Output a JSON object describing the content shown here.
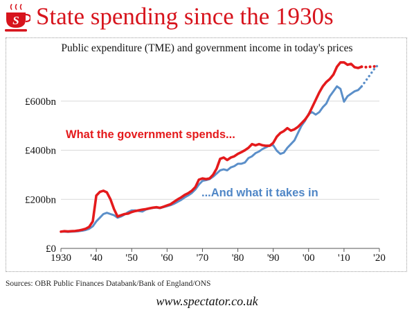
{
  "header": {
    "title": "State spending since the 1930s",
    "logo": "spectator-teacup-logo"
  },
  "colors": {
    "title": "#d7141d",
    "spending": "#e41a1c",
    "income": "#5b8fc9",
    "annotation_spending": "#e41a1c",
    "annotation_income": "#4f86c6"
  },
  "footer": {
    "sources": "Sources: OBR Public Finances Databank/Bank of England/ONS",
    "website": "www.spectator.co.uk"
  },
  "chart_data": {
    "type": "line",
    "title": "Public expenditure (TME) and government income in today's prices",
    "xlabel": "",
    "ylabel": "",
    "xlim": [
      1930,
      2020
    ],
    "ylim": [
      0,
      800
    ],
    "y_ticks": [
      0,
      200,
      400,
      600
    ],
    "y_tick_labels": [
      "£0",
      "£200bn",
      "£400bn",
      "£600bn"
    ],
    "x_ticks": [
      1930,
      1940,
      1950,
      1960,
      1970,
      1980,
      1990,
      2000,
      2010,
      2020
    ],
    "x_tick_labels": [
      "1930",
      "'40",
      "'50",
      "'60",
      "'70",
      "'80",
      "'90",
      "'00",
      "'10",
      "'20"
    ],
    "grid": "horizontal",
    "series": [
      {
        "name": "What the government spends...",
        "color": "#e41a1c",
        "x": [
          1930,
          1931,
          1932,
          1933,
          1934,
          1935,
          1936,
          1937,
          1938,
          1939,
          1940,
          1941,
          1942,
          1943,
          1944,
          1945,
          1946,
          1947,
          1948,
          1949,
          1950,
          1951,
          1952,
          1953,
          1954,
          1955,
          1956,
          1957,
          1958,
          1959,
          1960,
          1961,
          1962,
          1963,
          1964,
          1965,
          1966,
          1967,
          1968,
          1969,
          1970,
          1971,
          1972,
          1973,
          1974,
          1975,
          1976,
          1977,
          1978,
          1979,
          1980,
          1981,
          1982,
          1983,
          1984,
          1985,
          1986,
          1987,
          1988,
          1989,
          1990,
          1991,
          1992,
          1993,
          1994,
          1995,
          1996,
          1997,
          1998,
          1999,
          2000,
          2001,
          2002,
          2003,
          2004,
          2005,
          2006,
          2007,
          2008,
          2009,
          2010,
          2011,
          2012,
          2013,
          2014,
          2015
        ],
        "values": [
          68,
          70,
          69,
          70,
          71,
          73,
          76,
          80,
          88,
          110,
          215,
          230,
          235,
          228,
          200,
          160,
          130,
          135,
          140,
          142,
          148,
          152,
          155,
          158,
          160,
          163,
          166,
          168,
          165,
          170,
          175,
          180,
          190,
          200,
          208,
          218,
          225,
          235,
          250,
          280,
          285,
          282,
          285,
          300,
          325,
          365,
          370,
          360,
          370,
          375,
          385,
          392,
          400,
          410,
          425,
          420,
          425,
          420,
          418,
          418,
          430,
          455,
          470,
          478,
          490,
          480,
          485,
          495,
          510,
          525,
          545,
          575,
          605,
          635,
          660,
          678,
          690,
          708,
          740,
          758,
          758,
          748,
          752,
          738,
          735,
          740
        ]
      },
      {
        "name": "...And what it takes in",
        "color": "#5b8fc9",
        "x": [
          1930,
          1931,
          1932,
          1933,
          1934,
          1935,
          1936,
          1937,
          1938,
          1939,
          1940,
          1941,
          1942,
          1943,
          1944,
          1945,
          1946,
          1947,
          1948,
          1949,
          1950,
          1951,
          1952,
          1953,
          1954,
          1955,
          1956,
          1957,
          1958,
          1959,
          1960,
          1961,
          1962,
          1963,
          1964,
          1965,
          1966,
          1967,
          1968,
          1969,
          1970,
          1971,
          1972,
          1973,
          1974,
          1975,
          1976,
          1977,
          1978,
          1979,
          1980,
          1981,
          1982,
          1983,
          1984,
          1985,
          1986,
          1987,
          1988,
          1989,
          1990,
          1991,
          1992,
          1993,
          1994,
          1995,
          1996,
          1997,
          1998,
          1999,
          2000,
          2001,
          2002,
          2003,
          2004,
          2005,
          2006,
          2007,
          2008,
          2009,
          2010,
          2011,
          2012,
          2013,
          2014,
          2015
        ],
        "values": [
          68,
          68,
          67,
          68,
          69,
          70,
          72,
          75,
          80,
          90,
          110,
          125,
          140,
          145,
          140,
          135,
          125,
          130,
          138,
          148,
          155,
          155,
          152,
          150,
          158,
          162,
          165,
          166,
          164,
          168,
          172,
          176,
          182,
          190,
          198,
          208,
          216,
          226,
          240,
          260,
          275,
          278,
          282,
          292,
          305,
          318,
          322,
          318,
          330,
          335,
          345,
          345,
          350,
          368,
          375,
          388,
          395,
          405,
          412,
          420,
          420,
          398,
          385,
          390,
          410,
          425,
          440,
          470,
          500,
          520,
          548,
          555,
          545,
          555,
          575,
          590,
          620,
          640,
          660,
          650,
          598,
          620,
          630,
          640,
          645,
          660
        ]
      },
      {
        "name": "Spending forecast",
        "color": "#e41a1c",
        "dotted": true,
        "x": [
          2015,
          2016,
          2017,
          2018,
          2019
        ],
        "values": [
          740,
          738,
          740,
          740,
          742
        ]
      },
      {
        "name": "Income forecast",
        "color": "#5b8fc9",
        "dotted": true,
        "x": [
          2015,
          2016,
          2017,
          2018,
          2019,
          2020
        ],
        "values": [
          660,
          680,
          700,
          720,
          740,
          748
        ]
      }
    ],
    "annotations": [
      {
        "text": "What the government spends...",
        "series": "spending"
      },
      {
        "text": "...And what it takes in",
        "series": "income"
      }
    ]
  }
}
